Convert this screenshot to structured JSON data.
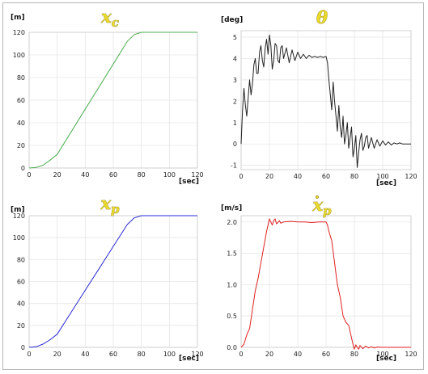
{
  "charts": [
    {
      "title_main": "x",
      "title_sub": "c",
      "title_dot": false,
      "ylabel": "[m]",
      "xlabel": "[sec]",
      "ticks_y": [
        0,
        20,
        40,
        60,
        80,
        100,
        120
      ],
      "ticks_x": [
        0,
        20,
        40,
        60,
        80,
        100,
        120
      ]
    },
    {
      "title_main": "θ",
      "title_sub": "",
      "title_dot": false,
      "ylabel": "[deg]",
      "xlabel": "[sec]",
      "ticks_y": [
        -1,
        0,
        1,
        2,
        3,
        4,
        5
      ],
      "ticks_x": [
        0,
        20,
        40,
        60,
        80,
        100,
        120
      ]
    },
    {
      "title_main": "x",
      "title_sub": "p",
      "title_dot": false,
      "ylabel": "[m]",
      "xlabel": "[sec]",
      "ticks_y": [
        0,
        20,
        40,
        60,
        80,
        100,
        120
      ],
      "ticks_x": [
        0,
        20,
        40,
        60,
        80,
        100,
        120
      ]
    },
    {
      "title_main": "x",
      "title_sub": "p",
      "title_dot": true,
      "ylabel": "[m/s]",
      "xlabel": "[sec]",
      "ticks_y": [
        "0.0",
        "0.5",
        "1.0",
        "1.5",
        "2.0"
      ],
      "ticks_x": [
        0,
        20,
        40,
        60,
        80,
        100,
        120
      ]
    }
  ],
  "chart_data": [
    {
      "type": "line",
      "title": "x_c",
      "ylabel": "[m]",
      "xlabel": "[sec]",
      "xlim": [
        0,
        120
      ],
      "ylim": [
        0,
        120
      ],
      "grid": true,
      "color": "#4caf50",
      "series": [
        {
          "x": [
            0,
            5,
            10,
            15,
            20,
            30,
            40,
            50,
            60,
            65,
            70,
            75,
            80,
            90,
            100,
            110,
            120
          ],
          "values": [
            0,
            0.5,
            2.5,
            7,
            12,
            32,
            52,
            72,
            92,
            102,
            112,
            118,
            120,
            120,
            120,
            120,
            120
          ]
        }
      ]
    },
    {
      "type": "line",
      "title": "θ",
      "ylabel": "[deg]",
      "xlabel": "[sec]",
      "xlim": [
        0,
        120
      ],
      "ylim": [
        -1.2,
        5.3
      ],
      "grid": true,
      "color": "#222222",
      "series": [
        {
          "x": [
            0,
            1,
            2,
            3,
            4,
            5,
            6,
            7,
            8,
            9,
            10,
            11,
            12,
            13,
            14,
            15,
            16,
            17,
            18,
            19,
            20,
            21,
            22,
            23,
            24,
            25,
            26,
            27,
            28,
            29,
            30,
            32,
            34,
            36,
            38,
            40,
            42,
            44,
            46,
            48,
            50,
            52,
            54,
            56,
            58,
            60,
            61,
            62,
            63,
            64,
            65,
            66,
            67,
            68,
            69,
            70,
            71,
            72,
            73,
            74,
            75,
            76,
            77,
            78,
            79,
            80,
            81,
            82,
            83,
            84,
            85,
            86,
            87,
            88,
            89,
            90,
            92,
            94,
            96,
            98,
            100,
            102,
            104,
            106,
            108,
            110,
            112,
            114,
            116,
            118,
            120
          ],
          "values": [
            0,
            1.6,
            2.6,
            1.8,
            1.3,
            2.2,
            3.0,
            2.3,
            2.8,
            3.7,
            4.0,
            3.3,
            3.3,
            4.3,
            4.6,
            3.9,
            3.6,
            4.5,
            4.9,
            4.2,
            5.1,
            4.6,
            3.5,
            3.9,
            4.7,
            4.6,
            3.9,
            3.8,
            4.5,
            4.6,
            4.0,
            4.5,
            3.8,
            4.4,
            3.9,
            4.3,
            4.0,
            4.2,
            4.0,
            4.15,
            4.05,
            4.1,
            4.05,
            4.1,
            4.05,
            4.1,
            3.8,
            3.0,
            2.3,
            1.6,
            2.9,
            2.0,
            1.3,
            0.6,
            1.8,
            0.8,
            0.3,
            1.3,
            0.0,
            0.4,
            1.0,
            -0.2,
            0.3,
            0.8,
            -0.6,
            -0.2,
            0.4,
            -1.1,
            -0.4,
            0.2,
            0.5,
            -0.3,
            -0.1,
            0.3,
            0.4,
            -0.2,
            0.3,
            -0.2,
            0.2,
            -0.1,
            0.15,
            -0.05,
            0.1,
            -0.05,
            0.05,
            0.0,
            0.05,
            0.0,
            0.0,
            0.0,
            0.0
          ]
        }
      ]
    },
    {
      "type": "line",
      "title": "x_p",
      "ylabel": "[m]",
      "xlabel": "[sec]",
      "xlim": [
        0,
        120
      ],
      "ylim": [
        0,
        120
      ],
      "grid": true,
      "color": "#2a2ad4",
      "series": [
        {
          "x": [
            0,
            5,
            10,
            15,
            20,
            30,
            40,
            50,
            60,
            65,
            70,
            75,
            80,
            90,
            100,
            110,
            120
          ],
          "values": [
            0,
            0.5,
            3,
            7,
            12,
            32,
            52,
            72,
            92,
            102,
            112,
            118,
            120,
            120,
            120,
            120,
            120
          ]
        }
      ]
    },
    {
      "type": "line",
      "title": "ẋ_p",
      "ylabel": "[m/s]",
      "xlabel": "[sec]",
      "xlim": [
        0,
        120
      ],
      "ylim": [
        0,
        2.1
      ],
      "grid": true,
      "color": "#e02020",
      "series": [
        {
          "x": [
            0,
            2,
            4,
            6,
            8,
            10,
            12,
            14,
            16,
            18,
            19,
            20,
            21,
            22,
            23,
            24,
            25,
            26,
            27,
            28,
            30,
            35,
            40,
            45,
            50,
            55,
            60,
            61,
            62,
            64,
            66,
            68,
            70,
            72,
            74,
            76,
            78,
            79,
            80,
            81,
            82,
            83,
            84,
            85,
            86,
            88,
            90,
            92,
            94,
            96,
            100,
            105,
            110,
            120
          ],
          "values": [
            0.0,
            0.05,
            0.2,
            0.3,
            0.6,
            0.9,
            1.1,
            1.35,
            1.6,
            1.85,
            1.95,
            2.05,
            2.0,
            1.95,
            2.02,
            2.05,
            1.97,
            1.99,
            2.02,
            1.98,
            2.0,
            2.01,
            2.0,
            2.0,
            1.99,
            2.0,
            2.0,
            1.95,
            1.85,
            1.7,
            1.35,
            1.0,
            0.8,
            0.5,
            0.4,
            0.35,
            0.15,
            0.05,
            -0.03,
            0.04,
            0.0,
            -0.03,
            0.03,
            0.0,
            -0.02,
            0.02,
            -0.01,
            0.01,
            -0.01,
            0.005,
            0.0,
            0.0,
            0.0,
            0.0
          ]
        }
      ]
    }
  ]
}
